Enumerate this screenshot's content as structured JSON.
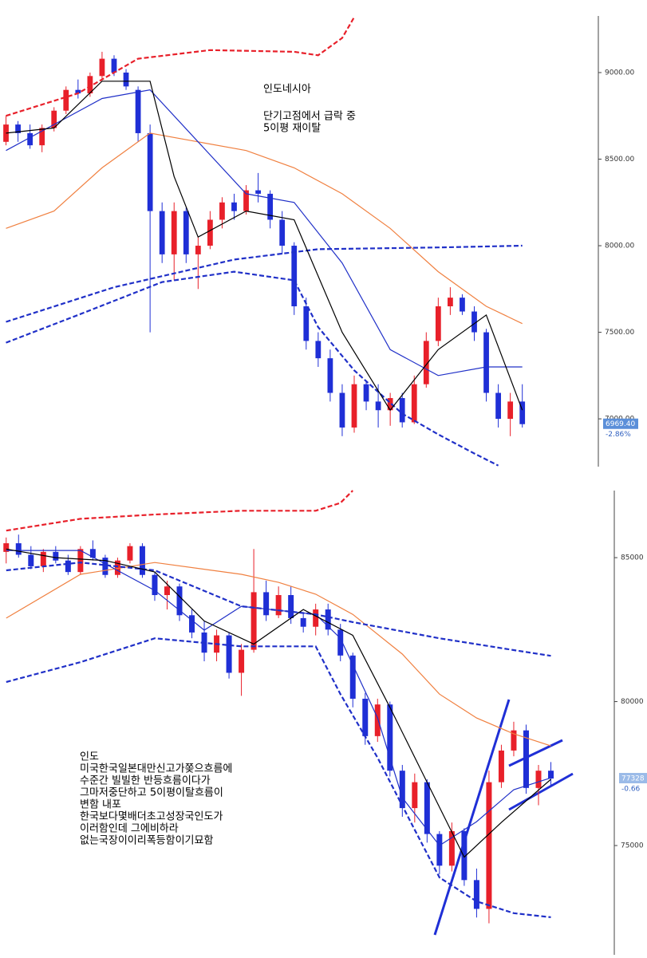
{
  "chart_data": [
    {
      "type": "candlestick",
      "annotations": [
        "인도네시아",
        "단기고점에서 급락 중",
        "5이평 재이탈"
      ],
      "open": [
        8600,
        8700,
        8650,
        8580,
        8680,
        8780,
        8900,
        8880,
        8980,
        9080,
        9000,
        8900,
        8650,
        8200,
        7950,
        8200,
        7950,
        8000,
        8150,
        8250,
        8200,
        8320,
        8300,
        8150,
        8000,
        7650,
        7450,
        7350,
        7150,
        6950,
        7200,
        7100,
        7050,
        7120,
        6980,
        7200,
        7450,
        7650,
        7700,
        7620,
        7500,
        7150,
        7000,
        7100
      ],
      "high": [
        8750,
        8720,
        8700,
        8700,
        8800,
        8920,
        8960,
        9000,
        9120,
        9100,
        9020,
        8920,
        8700,
        8250,
        8250,
        8220,
        8050,
        8200,
        8280,
        8300,
        8350,
        8420,
        8320,
        8200,
        8020,
        7700,
        7500,
        7400,
        7200,
        7250,
        7220,
        7200,
        7150,
        7150,
        7250,
        7500,
        7700,
        7760,
        7720,
        7650,
        7520,
        7200,
        7150,
        7200
      ],
      "low": [
        8580,
        8600,
        8560,
        8540,
        8660,
        8760,
        8850,
        8860,
        8960,
        8980,
        8900,
        8600,
        7500,
        7900,
        7800,
        7900,
        7750,
        7980,
        8100,
        8150,
        8180,
        8250,
        8100,
        7950,
        7600,
        7400,
        7300,
        7100,
        6900,
        6920,
        7050,
        6950,
        6960,
        6950,
        6970,
        7180,
        7420,
        7600,
        7600,
        7450,
        7100,
        6950,
        6900,
        6950
      ],
      "close": [
        8700,
        8650,
        8580,
        8680,
        8780,
        8900,
        8880,
        8980,
        9080,
        9000,
        8920,
        8650,
        8200,
        7950,
        8200,
        7950,
        8000,
        8150,
        8250,
        8200,
        8320,
        8300,
        8150,
        8000,
        7650,
        7450,
        7350,
        7150,
        6950,
        7200,
        7100,
        7050,
        7120,
        6980,
        7200,
        7450,
        7650,
        7700,
        7620,
        7500,
        7150,
        7000,
        7100,
        6969.4
      ],
      "up_color": "#e8202a",
      "down_color": "#1f2fd6",
      "lines": [
        {
          "color": "#e8202a",
          "dashed": true,
          "x": [
            0,
            6,
            11,
            17,
            24,
            26,
            28,
            29
          ],
          "values": [
            8750,
            8880,
            9080,
            9130,
            9120,
            9100,
            9200,
            9320
          ]
        },
        {
          "color": "#f08040",
          "dashed": false,
          "x": [
            0,
            4,
            8,
            12,
            16,
            20,
            24,
            28,
            32,
            36,
            40,
            43
          ],
          "values": [
            8100,
            8200,
            8450,
            8650,
            8600,
            8550,
            8450,
            8300,
            8100,
            7850,
            7650,
            7550
          ]
        },
        {
          "color": "#2030c8",
          "dashed": false,
          "x": [
            0,
            4,
            8,
            12,
            16,
            20,
            24,
            28,
            32,
            36,
            40,
            43
          ],
          "values": [
            8550,
            8700,
            8850,
            8900,
            8600,
            8300,
            8250,
            7900,
            7400,
            7250,
            7300,
            7300
          ]
        },
        {
          "color": "#2030c8",
          "dashed": true,
          "x": [
            0,
            9,
            19,
            26,
            36,
            43
          ],
          "values": [
            7560,
            7760,
            7920,
            7980,
            7990,
            8000
          ]
        },
        {
          "color": "#2030c8",
          "dashed": true,
          "x": [
            0,
            6,
            13,
            19,
            24,
            26,
            29,
            33,
            36,
            39,
            41
          ],
          "values": [
            7440,
            7600,
            7790,
            7850,
            7800,
            7530,
            7280,
            7030,
            6910,
            6800,
            6730
          ]
        },
        {
          "color": "#000000",
          "dashed": false,
          "x": [
            0,
            4,
            8,
            12,
            14,
            16,
            20,
            24,
            28,
            32,
            36,
            40,
            43
          ],
          "values": [
            8650,
            8680,
            8950,
            8950,
            8400,
            8050,
            8200,
            8150,
            7500,
            7050,
            7400,
            7600,
            7050
          ]
        }
      ],
      "xlim": [
        -0.5,
        49
      ],
      "ylim": [
        6724,
        9327
      ],
      "yticks": [
        {
          "value": 7000,
          "label": "7000.00"
        },
        {
          "value": 7500,
          "label": "7500.00"
        },
        {
          "value": 8000,
          "label": "8000.00"
        },
        {
          "value": 8500,
          "label": "8500.00"
        },
        {
          "value": 9000,
          "label": "9000.00"
        }
      ],
      "last_price": {
        "value": 6969.4,
        "label": "6969.40"
      },
      "change": "-2.86%"
    },
    {
      "type": "candlestick",
      "annotations": [
        "인도",
        "미국한국일본대만신고가쫒으흐름에",
        "수준간 빌빌한 반등흐름이다가",
        "그마저중단하고 5이평이탈흐름이",
        "변함 내포",
        "한국보다몇배더초고성장국인도가",
        "이러함인데 그에비하라",
        "없는국장이이리폭등함이기묘함"
      ],
      "open": [
        85200,
        85500,
        85100,
        84700,
        85200,
        84900,
        84500,
        85300,
        85000,
        84400,
        84900,
        85400,
        84400,
        83700,
        84000,
        83000,
        82400,
        81700,
        82300,
        81000,
        81800,
        83800,
        83000,
        83700,
        82900,
        82600,
        83200,
        82500,
        81600,
        80100,
        78800,
        79900,
        77600,
        76300,
        77200,
        75400,
        74300,
        75500,
        73800,
        72800,
        77200,
        78300,
        79000,
        77000,
        77600
      ],
      "high": [
        85700,
        85800,
        85400,
        85300,
        85400,
        85100,
        85400,
        85600,
        85100,
        85000,
        85500,
        85500,
        84500,
        84200,
        84100,
        83200,
        82800,
        82500,
        82400,
        82000,
        85300,
        84200,
        84000,
        84000,
        83100,
        83400,
        83400,
        82700,
        81700,
        80300,
        80100,
        80000,
        77800,
        77500,
        77300,
        75500,
        75800,
        75600,
        74200,
        77600,
        78500,
        79300,
        79200,
        77800,
        77900
      ],
      "low": [
        84800,
        85000,
        84600,
        84500,
        84800,
        84400,
        84400,
        84900,
        84300,
        84300,
        84800,
        84300,
        83500,
        83200,
        82800,
        82200,
        81400,
        81400,
        80800,
        80200,
        81700,
        82800,
        82900,
        82700,
        82400,
        82300,
        82300,
        81400,
        79800,
        78500,
        78600,
        77400,
        76000,
        75800,
        75100,
        74000,
        74100,
        73600,
        72500,
        72300,
        77000,
        78100,
        76800,
        76400,
        77100
      ],
      "close": [
        85500,
        85100,
        84700,
        85200,
        84900,
        84500,
        85300,
        85000,
        84400,
        84900,
        85400,
        84400,
        83700,
        84000,
        83000,
        82400,
        81700,
        82300,
        81000,
        81800,
        83800,
        83000,
        83700,
        82900,
        82600,
        83200,
        82500,
        81600,
        80100,
        78800,
        79900,
        77600,
        76300,
        77200,
        75400,
        74300,
        75500,
        73800,
        72800,
        77200,
        78300,
        79000,
        77000,
        77600,
        77328
      ],
      "up_color": "#e8202a",
      "down_color": "#1f2fd6",
      "lines": [
        {
          "color": "#e8202a",
          "dashed": true,
          "x": [
            0,
            6,
            12,
            19,
            25,
            27,
            28
          ],
          "values": [
            85940,
            86350,
            86500,
            86630,
            86630,
            86900,
            87330
          ]
        },
        {
          "color": "#f08040",
          "dashed": false,
          "x": [
            0,
            6,
            12,
            19,
            22,
            25,
            28,
            32,
            35,
            38,
            41,
            44
          ],
          "values": [
            82900,
            84420,
            84830,
            84420,
            84140,
            83730,
            83030,
            81650,
            80260,
            79430,
            78880,
            78460
          ]
        },
        {
          "color": "#2030c8",
          "dashed": true,
          "x": [
            0,
            6,
            12,
            19,
            25,
            28,
            35,
            41,
            44
          ],
          "values": [
            84560,
            84830,
            84560,
            83310,
            83030,
            82760,
            82200,
            81790,
            81590
          ]
        },
        {
          "color": "#2030c8",
          "dashed": true,
          "x": [
            0,
            6,
            12,
            19,
            25,
            27,
            30,
            33,
            35,
            38,
            41,
            44
          ],
          "values": [
            80680,
            81370,
            82200,
            81920,
            81920,
            80260,
            78050,
            75550,
            73890,
            73060,
            72650,
            72510
          ]
        },
        {
          "color": "#2030c8",
          "dashed": false,
          "x": [
            0,
            6,
            12,
            16,
            19,
            25,
            27,
            30,
            32,
            35,
            38,
            41,
            44
          ],
          "values": [
            85250,
            85250,
            83860,
            82480,
            83310,
            83030,
            82200,
            79430,
            76660,
            75000,
            75830,
            76940,
            77350
          ]
        },
        {
          "color": "#000000",
          "dashed": false,
          "x": [
            0,
            4,
            8,
            12,
            16,
            20,
            24,
            28,
            31,
            34,
            37,
            40,
            44
          ],
          "values": [
            85300,
            85000,
            84900,
            84500,
            82800,
            82000,
            83200,
            82300,
            79800,
            77200,
            74600,
            75800,
            77300
          ]
        }
      ],
      "xlim": [
        -0.5,
        48.8
      ],
      "ylim": [
        71260,
        87330
      ],
      "yticks": [
        75000,
        80000,
        85000
      ],
      "last_price": 77328,
      "change": -0.66
    }
  ]
}
